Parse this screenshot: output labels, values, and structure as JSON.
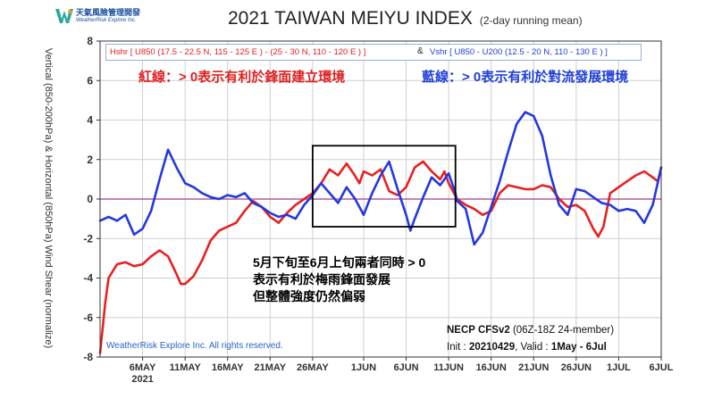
{
  "logo": {
    "name_zh": "天氣風險管理開發",
    "name_en": "WeatherRisk Explore Inc."
  },
  "title": "2021 TAIWAN MEIYU INDEX",
  "title_note": "(2-day running mean)",
  "definitions": {
    "red": "Hshr [ U850 (17.5 - 22.5 N, 115 - 125 E ) - (25 - 30 N, 110 - 120 E ) ]",
    "amp": "&",
    "blue": "Vshr [ U850 - U200 (12.5 - 20 N, 110 - 130 E ) ]"
  },
  "annotations": {
    "red": "紅線：> 0表示有利於鋒面建立環境",
    "blue": "藍線：> 0表示有利於對流發展環境",
    "note_lines": [
      "5月下旬至6月上旬兩者同時 > 0",
      "表示有利於梅雨鋒面發展",
      "但整體強度仍然偏弱"
    ]
  },
  "source": {
    "model": "NECP CFSv2",
    "members": "(06Z-18Z 24-member)",
    "init_label": "Init :",
    "init_value": "20210429",
    "valid_label": ", Valid :",
    "valid_value": "1May - 6Jul"
  },
  "copyright": "WeatherRisk Explore Inc. All rights reserved.",
  "colors": {
    "red": "#e82020",
    "blue": "#2438e0",
    "zero_line": "#a03c8c",
    "grid": "#cfcfcf"
  },
  "chart_data": {
    "type": "line",
    "ylabel": "Vertical (850-200hPa) & Horizontal (850hPa) Wind Shear (normalize)",
    "ylim": [
      -8,
      8
    ],
    "yticks": [
      -8,
      -6,
      -4,
      -2,
      0,
      2,
      4,
      6,
      8
    ],
    "xlim": [
      1,
      67
    ],
    "x_unit": "day index (1 = 1 May 2021)",
    "xticks": [
      {
        "day": 6,
        "label": "6MAY"
      },
      {
        "day": 11,
        "label": "11MAY"
      },
      {
        "day": 16,
        "label": "16MAY"
      },
      {
        "day": 21,
        "label": "21MAY"
      },
      {
        "day": 26,
        "label": "26MAY"
      },
      {
        "day": 32,
        "label": "1JUN"
      },
      {
        "day": 37,
        "label": "6JUN"
      },
      {
        "day": 42,
        "label": "11JUN"
      },
      {
        "day": 47,
        "label": "16JUN"
      },
      {
        "day": 52,
        "label": "21JUN"
      },
      {
        "day": 57,
        "label": "26JUN"
      },
      {
        "day": 62,
        "label": "1JUL"
      },
      {
        "day": 67,
        "label": "6JUL"
      }
    ],
    "year_label": "2021",
    "highlight_box": {
      "x_range": [
        26.0,
        42.8
      ],
      "y_range": [
        -1.4,
        2.7
      ]
    },
    "grid": true,
    "series": [
      {
        "name": "Hshr",
        "color": "#e82020",
        "points": [
          [
            1,
            -7.8
          ],
          [
            1.6,
            -5.3
          ],
          [
            2,
            -4.0
          ],
          [
            3,
            -3.3
          ],
          [
            4,
            -3.2
          ],
          [
            5,
            -3.4
          ],
          [
            6,
            -3.3
          ],
          [
            7,
            -2.9
          ],
          [
            8,
            -2.6
          ],
          [
            9,
            -2.9
          ],
          [
            10,
            -3.8
          ],
          [
            10.5,
            -4.3
          ],
          [
            11,
            -4.3
          ],
          [
            12,
            -3.9
          ],
          [
            13,
            -3.1
          ],
          [
            14,
            -2.1
          ],
          [
            15,
            -1.6
          ],
          [
            16,
            -1.4
          ],
          [
            17,
            -1.2
          ],
          [
            18,
            -0.6
          ],
          [
            19,
            -0.1
          ],
          [
            20,
            -0.4
          ],
          [
            21,
            -0.9
          ],
          [
            22,
            -1.2
          ],
          [
            23,
            -0.7
          ],
          [
            24,
            -0.3
          ],
          [
            25,
            0.0
          ],
          [
            26,
            0.3
          ],
          [
            27,
            0.8
          ],
          [
            28,
            1.5
          ],
          [
            29,
            1.2
          ],
          [
            30,
            1.8
          ],
          [
            30.8,
            1.3
          ],
          [
            31.5,
            0.8
          ],
          [
            32,
            1.4
          ],
          [
            33,
            1.2
          ],
          [
            34,
            1.5
          ],
          [
            35,
            0.4
          ],
          [
            36,
            0.2
          ],
          [
            37,
            0.6
          ],
          [
            38,
            1.6
          ],
          [
            39,
            1.9
          ],
          [
            40,
            1.4
          ],
          [
            41,
            1.0
          ],
          [
            41.5,
            1.4
          ],
          [
            42,
            0.8
          ],
          [
            43,
            0.0
          ],
          [
            44,
            -0.3
          ],
          [
            45,
            -0.5
          ],
          [
            46,
            -0.8
          ],
          [
            47,
            -0.6
          ],
          [
            48,
            0.3
          ],
          [
            49,
            0.7
          ],
          [
            50,
            0.6
          ],
          [
            51,
            0.5
          ],
          [
            52,
            0.5
          ],
          [
            53,
            0.7
          ],
          [
            54,
            0.6
          ],
          [
            55,
            0.0
          ],
          [
            56,
            -0.4
          ],
          [
            57,
            -0.3
          ],
          [
            58,
            -0.6
          ],
          [
            59,
            -1.5
          ],
          [
            59.6,
            -1.9
          ],
          [
            60.2,
            -1.4
          ],
          [
            61,
            0.3
          ],
          [
            62,
            0.6
          ],
          [
            63,
            0.9
          ],
          [
            64,
            1.2
          ],
          [
            65,
            1.4
          ],
          [
            66,
            1.1
          ],
          [
            66.6,
            0.9
          ],
          [
            67,
            1.6
          ]
        ]
      },
      {
        "name": "Vshr",
        "color": "#2438e0",
        "points": [
          [
            1,
            -1.1
          ],
          [
            2,
            -0.9
          ],
          [
            3,
            -1.1
          ],
          [
            4,
            -0.8
          ],
          [
            5,
            -1.8
          ],
          [
            6,
            -1.5
          ],
          [
            7,
            -0.6
          ],
          [
            8,
            1.0
          ],
          [
            9,
            2.5
          ],
          [
            10,
            1.6
          ],
          [
            11,
            0.8
          ],
          [
            12,
            0.6
          ],
          [
            13,
            0.3
          ],
          [
            14,
            0.1
          ],
          [
            15,
            0.0
          ],
          [
            16,
            0.2
          ],
          [
            17,
            0.1
          ],
          [
            18,
            0.3
          ],
          [
            19,
            -0.2
          ],
          [
            20,
            -0.4
          ],
          [
            21,
            -0.7
          ],
          [
            22,
            -0.9
          ],
          [
            23,
            -0.8
          ],
          [
            24,
            -1.0
          ],
          [
            25,
            -0.3
          ],
          [
            26,
            0.2
          ],
          [
            27,
            0.8
          ],
          [
            28,
            0.3
          ],
          [
            29,
            -0.2
          ],
          [
            30,
            0.6
          ],
          [
            31,
            0.0
          ],
          [
            32,
            -0.8
          ],
          [
            33,
            0.3
          ],
          [
            34,
            1.2
          ],
          [
            35,
            1.9
          ],
          [
            36,
            0.5
          ],
          [
            37,
            -0.8
          ],
          [
            37.5,
            -1.6
          ],
          [
            38,
            -1.0
          ],
          [
            39,
            0.1
          ],
          [
            40,
            1.1
          ],
          [
            41,
            0.7
          ],
          [
            42,
            1.3
          ],
          [
            42.8,
            0.3
          ],
          [
            43,
            -0.1
          ],
          [
            44,
            -0.5
          ],
          [
            45,
            -2.3
          ],
          [
            46,
            -1.7
          ],
          [
            47,
            -0.4
          ],
          [
            48,
            0.9
          ],
          [
            49,
            2.4
          ],
          [
            50,
            3.8
          ],
          [
            51,
            4.4
          ],
          [
            52,
            4.2
          ],
          [
            53,
            3.2
          ],
          [
            54,
            1.2
          ],
          [
            55,
            -0.3
          ],
          [
            56,
            -0.8
          ],
          [
            57,
            0.5
          ],
          [
            58,
            0.4
          ],
          [
            59,
            0.1
          ],
          [
            60,
            -0.2
          ],
          [
            61,
            -0.3
          ],
          [
            62,
            -0.6
          ],
          [
            63,
            -0.5
          ],
          [
            64,
            -0.6
          ],
          [
            65,
            -1.2
          ],
          [
            66,
            -0.3
          ],
          [
            67,
            1.6
          ]
        ]
      }
    ]
  }
}
